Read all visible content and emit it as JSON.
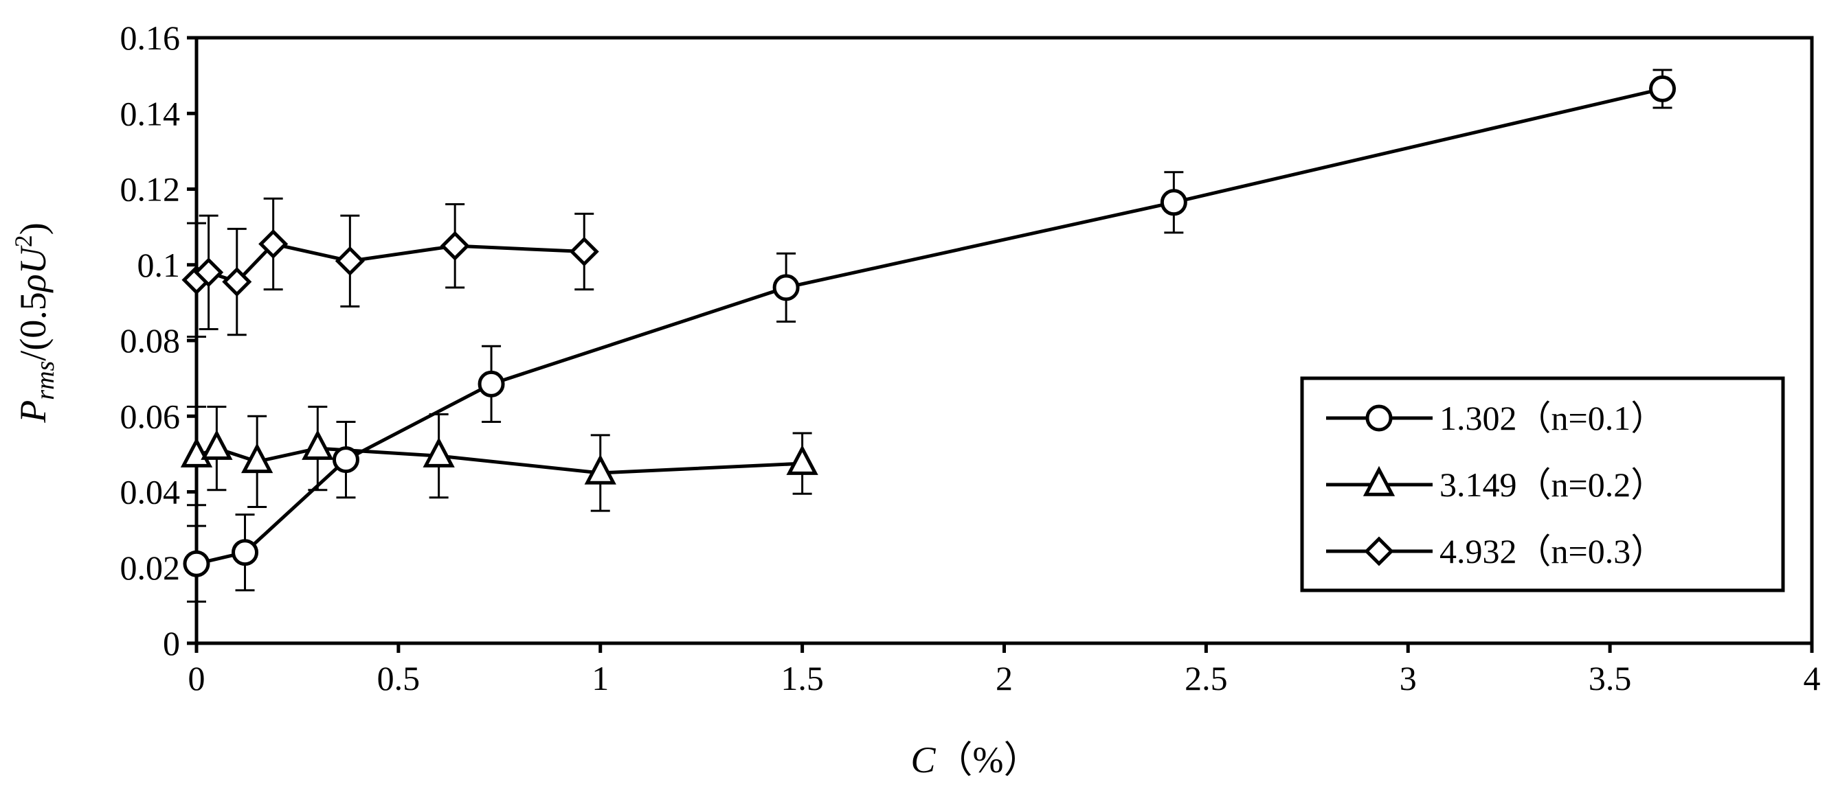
{
  "chart_data": {
    "type": "line",
    "title": "",
    "xlabel": {
      "var": "C",
      "unit": "（%）"
    },
    "ylabel": {
      "p": "P",
      "sub": "rms",
      "rest": "/(0.5",
      "rho": "ρ",
      "u": "U",
      "sup": "2",
      "close": ")"
    },
    "xlim": [
      0,
      4
    ],
    "ylim": [
      0,
      0.16
    ],
    "xticks": [
      0,
      0.5,
      1,
      1.5,
      2,
      2.5,
      3,
      3.5,
      4
    ],
    "xtick_labels": [
      "0",
      "0.5",
      "1",
      "1.5",
      "2",
      "2.5",
      "3",
      "3.5",
      "4"
    ],
    "yticks": [
      0,
      0.02,
      0.04,
      0.06,
      0.08,
      0.1,
      0.12,
      0.14,
      0.16
    ],
    "ytick_labels": [
      "0",
      "0.02",
      "0.04",
      "0.06",
      "0.08",
      "0.1",
      "0.12",
      "0.14",
      "0.16"
    ],
    "grid": false,
    "legend_position": "right",
    "series": [
      {
        "name": "1.302（n=0.1）",
        "marker": "circle",
        "color": "#000000",
        "points": [
          {
            "x": 0.0,
            "y": 0.021,
            "err": 0.01
          },
          {
            "x": 0.12,
            "y": 0.024,
            "err": 0.01
          },
          {
            "x": 0.37,
            "y": 0.0485,
            "err": 0.01
          },
          {
            "x": 0.73,
            "y": 0.0685,
            "err": 0.01
          },
          {
            "x": 1.46,
            "y": 0.094,
            "err": 0.009
          },
          {
            "x": 2.42,
            "y": 0.1165,
            "err": 0.008
          },
          {
            "x": 3.63,
            "y": 0.1465,
            "err": 0.005
          }
        ]
      },
      {
        "name": "3.149（n=0.2）",
        "marker": "triangle",
        "color": "#000000",
        "points": [
          {
            "x": 0.0,
            "y": 0.0495,
            "err": 0.013
          },
          {
            "x": 0.05,
            "y": 0.0515,
            "err": 0.011
          },
          {
            "x": 0.15,
            "y": 0.048,
            "err": 0.012
          },
          {
            "x": 0.3,
            "y": 0.0515,
            "err": 0.011
          },
          {
            "x": 0.6,
            "y": 0.0495,
            "err": 0.011
          },
          {
            "x": 1.0,
            "y": 0.045,
            "err": 0.01
          },
          {
            "x": 1.5,
            "y": 0.0475,
            "err": 0.008
          }
        ]
      },
      {
        "name": "4.932（n=0.3）",
        "marker": "diamond",
        "color": "#000000",
        "points": [
          {
            "x": 0.0,
            "y": 0.096,
            "err": 0.015
          },
          {
            "x": 0.03,
            "y": 0.098,
            "err": 0.015
          },
          {
            "x": 0.1,
            "y": 0.0955,
            "err": 0.014
          },
          {
            "x": 0.19,
            "y": 0.1055,
            "err": 0.012
          },
          {
            "x": 0.38,
            "y": 0.101,
            "err": 0.012
          },
          {
            "x": 0.64,
            "y": 0.105,
            "err": 0.011
          },
          {
            "x": 0.96,
            "y": 0.1035,
            "err": 0.01
          }
        ]
      }
    ]
  }
}
